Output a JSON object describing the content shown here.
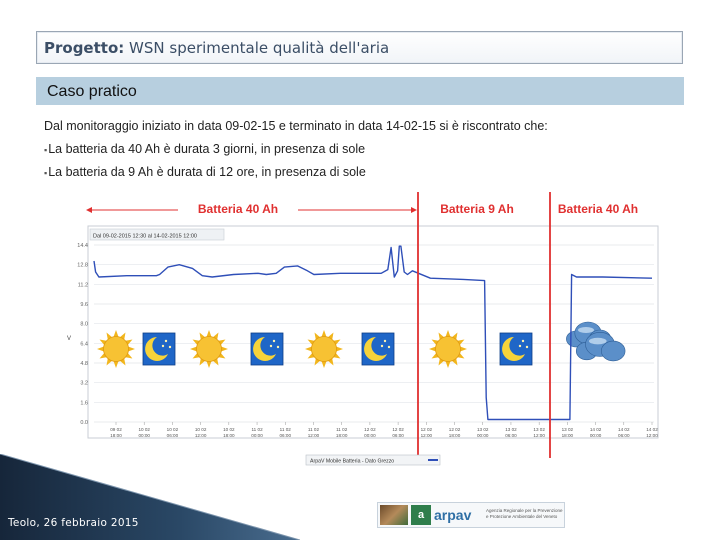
{
  "header": {
    "title_bold": "Progetto:",
    "title_rest": " WSN sperimentale qualità dell'aria"
  },
  "section": {
    "label": "Caso pratico"
  },
  "body": {
    "intro": "Dal monitoraggio iniziato in data 09-02-15 e terminato in data 14-02-15 si è riscontrato che:",
    "bullets": [
      "La batteria da 40 Ah è durata 3 giorni, in presenza di sole",
      "La batteria da 9 Ah è durata di 12 ore, in presenza di sole"
    ]
  },
  "chart_data": {
    "type": "line",
    "header": "Dal 09-02-2015 12:30 al 14-02-2015 12:00",
    "yticks": [
      "14.4",
      "12.8",
      "11.2",
      "9.6",
      "8.0",
      "6.4",
      "4.8",
      "3.2",
      "1.6",
      "0.0"
    ],
    "ylabel": "V",
    "xticks": [
      "09 02 18:00",
      "10 02 00:00",
      "10 02 06:00",
      "10 02 12:00",
      "10 02 18:00",
      "11 02 00:00",
      "11 02 06:00",
      "11 02 12:00",
      "11 02 18:00",
      "12 02 00:00",
      "12 02 06:00",
      "12 02 12:00",
      "12 02 18:00",
      "13 02 00:00",
      "13 02 06:00",
      "13 02 12:00",
      "13 02 18:00",
      "14 02 00:00",
      "14 02 06:00",
      "14 02 12:00"
    ],
    "legend": "ArpaV Mobile Batteria - Dato Grezzo",
    "battery_labels": [
      {
        "text": "Batteria 40 Ah"
      },
      {
        "text": "Batteria 9 Ah"
      },
      {
        "text": "Batteria 40 Ah"
      }
    ],
    "weather_icons": [
      "sun-icon",
      "moon-icon",
      "sun-icon",
      "moon-icon",
      "sun-icon",
      "moon-icon",
      "sun-icon",
      "moon-icon",
      "cloud-icon"
    ],
    "series": [
      {
        "values": [
          [
            0,
            13.1
          ],
          [
            0.1,
            12.2
          ],
          [
            0.3,
            11.8
          ],
          [
            2.0,
            11.9
          ],
          [
            3.8,
            11.9
          ],
          [
            4.0,
            12.0
          ],
          [
            4.5,
            12.6
          ],
          [
            5.2,
            12.8
          ],
          [
            6.0,
            12.5
          ],
          [
            6.6,
            11.9
          ],
          [
            7.2,
            11.8
          ],
          [
            8.5,
            12.0
          ],
          [
            10.0,
            12.1
          ],
          [
            10.5,
            12.0
          ],
          [
            11.1,
            12.1
          ],
          [
            11.6,
            12.6
          ],
          [
            12.4,
            12.7
          ],
          [
            13.0,
            12.3
          ],
          [
            13.4,
            12.0
          ],
          [
            15.0,
            12.1
          ],
          [
            17.5,
            12.1
          ],
          [
            17.9,
            12.4
          ],
          [
            18.1,
            14.2
          ],
          [
            18.3,
            11.8
          ],
          [
            18.5,
            12.3
          ],
          [
            18.6,
            14.3
          ],
          [
            18.7,
            14.3
          ],
          [
            18.9,
            12.2
          ],
          [
            19.1,
            12.0
          ],
          [
            19.4,
            12.3
          ],
          [
            20.5,
            11.7
          ],
          [
            22.5,
            11.6
          ],
          [
            23.8,
            11.5
          ],
          [
            23.9,
            2.0
          ],
          [
            24.0,
            0.2
          ],
          [
            29.0,
            0.2
          ],
          [
            29.1,
            12.0
          ],
          [
            29.4,
            11.8
          ],
          [
            31.0,
            11.8
          ],
          [
            34.0,
            11.7
          ]
        ]
      }
    ]
  },
  "footer": {
    "text": "Teolo, 26 febbraio 2015"
  },
  "logo": {
    "mark": "a",
    "name": "arpav",
    "subtitle": "Agenzia Regionale per la Prevenzione e Protezione Ambientale del Veneto"
  }
}
